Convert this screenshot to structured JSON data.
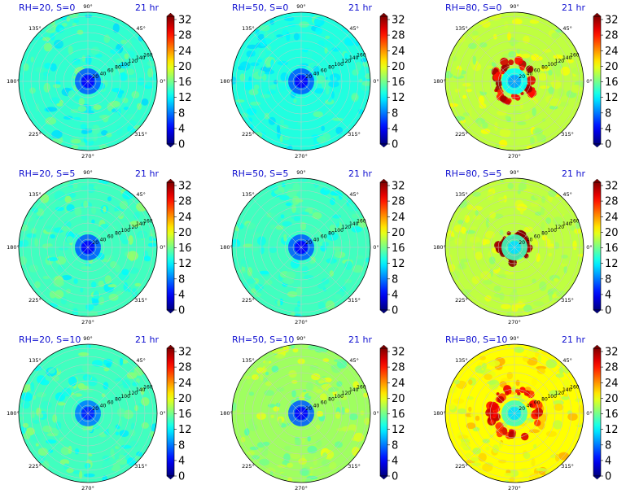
{
  "chart_data": [
    {
      "type": "heatmap",
      "title": "RH=20, S=0",
      "time": "21 hr",
      "center_value": 7,
      "field_value": 13.5,
      "ring_value": null,
      "ring_radius": null,
      "patchiness": 0.6
    },
    {
      "type": "heatmap",
      "title": "RH=50, S=0",
      "time": "21 hr",
      "center_value": 7,
      "field_value": 13,
      "ring_value": null,
      "ring_radius": null,
      "patchiness": 0.5
    },
    {
      "type": "heatmap",
      "title": "RH=80, S=0",
      "time": "21 hr",
      "center_value": 12,
      "field_value": 18,
      "ring_value": 29,
      "ring_radius": 45,
      "patchiness": 0.5
    },
    {
      "type": "heatmap",
      "title": "RH=20, S=5",
      "time": "21 hr",
      "center_value": 7,
      "field_value": 14,
      "ring_value": null,
      "ring_radius": null,
      "patchiness": 0.6
    },
    {
      "type": "heatmap",
      "title": "RH=50, S=5",
      "time": "21 hr",
      "center_value": 7,
      "field_value": 14,
      "ring_value": null,
      "ring_radius": null,
      "patchiness": 0.5
    },
    {
      "type": "heatmap",
      "title": "RH=80, S=5",
      "time": "21 hr",
      "center_value": 14,
      "field_value": 18,
      "ring_value": 32,
      "ring_radius": 30,
      "patchiness": 0.4
    },
    {
      "type": "heatmap",
      "title": "RH=20, S=10",
      "time": "21 hr",
      "center_value": 8,
      "field_value": 14,
      "ring_value": null,
      "ring_radius": null,
      "patchiness": 0.6
    },
    {
      "type": "heatmap",
      "title": "RH=50, S=10",
      "time": "21 hr",
      "center_value": 7,
      "field_value": 17,
      "ring_value": null,
      "ring_radius": null,
      "patchiness": 0.6
    },
    {
      "type": "heatmap",
      "title": "RH=80, S=10",
      "time": "21 hr",
      "center_value": 14,
      "field_value": 20,
      "ring_value": 28,
      "ring_radius": 55,
      "patchiness": 0.6
    }
  ],
  "angular_ticks": [
    "0°",
    "45°",
    "90°",
    "135°",
    "180°",
    "225°",
    "270°",
    "315°"
  ],
  "radial_ticks": [
    "20",
    "40",
    "60",
    "80",
    "100",
    "120",
    "140",
    "160"
  ],
  "colorbar": {
    "ticks": [
      "0",
      "4",
      "8",
      "12",
      "16",
      "20",
      "24",
      "28",
      "32"
    ],
    "min": 0,
    "max": 32,
    "colormap": "jet"
  },
  "colors": {
    "title": "#1010d0",
    "grid": "#c8c8c8"
  }
}
